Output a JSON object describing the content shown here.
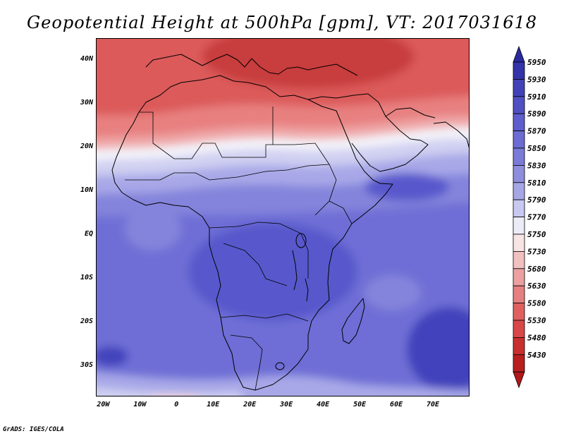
{
  "title": "Geopotential Height at 500hPa [gpm], VT: 2017031618",
  "credit": "GrADS: IGES/COLA",
  "map": {
    "variable": "Geopotential Height at 500hPa",
    "units": "gpm",
    "valid_time": "2017031618",
    "lon_range": [
      -22,
      80
    ],
    "lat_range": [
      -37,
      45
    ],
    "lat_ticks": [
      {
        "value": 40,
        "label": "40N"
      },
      {
        "value": 30,
        "label": "30N"
      },
      {
        "value": 20,
        "label": "20N"
      },
      {
        "value": 10,
        "label": "10N"
      },
      {
        "value": 0,
        "label": "EQ"
      },
      {
        "value": -10,
        "label": "10S"
      },
      {
        "value": -20,
        "label": "20S"
      },
      {
        "value": -30,
        "label": "30S"
      }
    ],
    "lon_ticks": [
      {
        "value": -20,
        "label": "20W"
      },
      {
        "value": -10,
        "label": "10W"
      },
      {
        "value": 0,
        "label": "0"
      },
      {
        "value": 10,
        "label": "10E"
      },
      {
        "value": 20,
        "label": "20E"
      },
      {
        "value": 30,
        "label": "30E"
      },
      {
        "value": 40,
        "label": "40E"
      },
      {
        "value": 50,
        "label": "50E"
      },
      {
        "value": 60,
        "label": "60E"
      },
      {
        "value": 70,
        "label": "70E"
      }
    ]
  },
  "colorbar": {
    "levels": [
      "5950",
      "5930",
      "5910",
      "5890",
      "5870",
      "5850",
      "5830",
      "5810",
      "5790",
      "5770",
      "5750",
      "5730",
      "5680",
      "5630",
      "5580",
      "5530",
      "5480",
      "5430"
    ],
    "colors": [
      "#3333aa",
      "#4242b8",
      "#5050c2",
      "#5e5ecc",
      "#6c6cd3",
      "#7a7ad8",
      "#8e8ede",
      "#a6a6e6",
      "#c8c8f0",
      "#ececf8",
      "#f8e4e4",
      "#f2c0c0",
      "#eca0a0",
      "#e68080",
      "#e06060",
      "#d84848",
      "#c83030",
      "#b82020"
    ],
    "top_arrow_color": "#2a2aa0",
    "bottom_arrow_color": "#b01818"
  },
  "field_colors": {
    "deep_red": "#c83c3c",
    "red": "#dc5a5a",
    "salmon": "#e88080",
    "pink": "#f0a8a8",
    "light_pink": "#f8d8d8",
    "white": "#f4f4fa",
    "pale_blue": "#d0d0f2",
    "light_blue": "#a8a8e8",
    "blue": "#8484dc",
    "mid_blue": "#6e6ed6",
    "deep_blue": "#5858cc",
    "darkest_blue": "#4242bc"
  }
}
